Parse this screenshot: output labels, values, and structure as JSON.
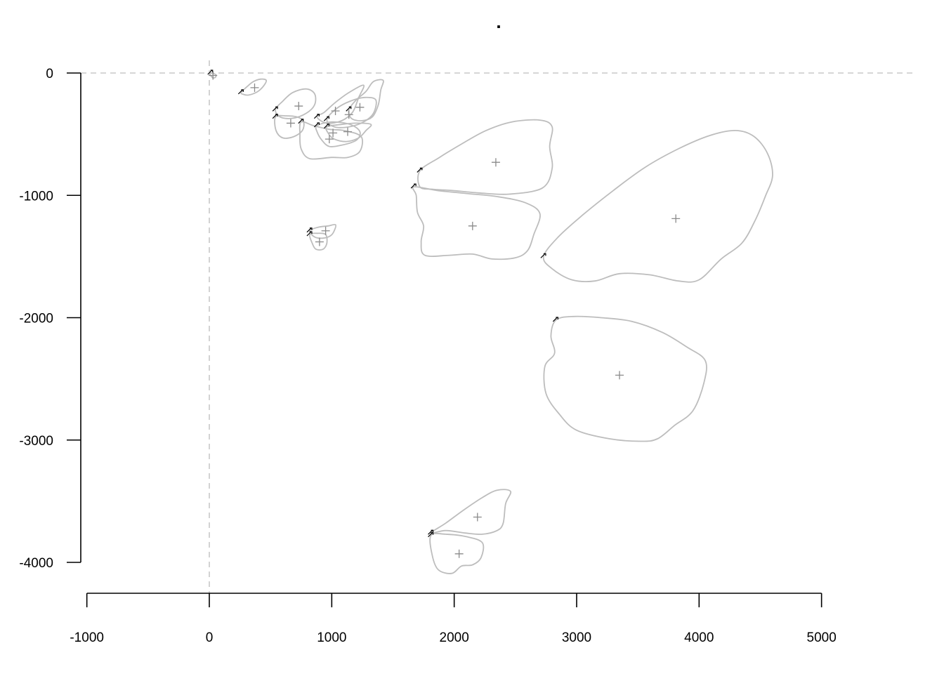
{
  "chart_data": {
    "type": "scatter",
    "title": ".",
    "xlabel": "",
    "ylabel": "",
    "xlim": [
      -1000,
      5000
    ],
    "ylim": [
      -4000,
      0
    ],
    "x_ticks": [
      -1000,
      0,
      1000,
      2000,
      3000,
      4000,
      5000
    ],
    "y_ticks": [
      0,
      -1000,
      -2000,
      -3000,
      -4000
    ],
    "x_tick_labels": [
      "-1000",
      "0",
      "1000",
      "2000",
      "3000",
      "4000",
      "5000"
    ],
    "y_tick_labels": [
      "0",
      "-1000",
      "-2000",
      "-3000",
      "-4000"
    ],
    "reference_lines": {
      "horizontal_at_y": 0,
      "vertical_at_x": 0,
      "style": "dashed"
    },
    "colors": {
      "outline": "#bdbdbd",
      "centroid": "#8a8a8a",
      "start_marker": "#000000",
      "axis": "#000000",
      "reference": "#c8c8c8"
    },
    "shapes": [
      {
        "centroid": [
          30,
          -20
        ],
        "start": [
          10,
          0
        ],
        "outline": [
          [
            10,
            0
          ],
          [
            35,
            -5
          ],
          [
            55,
            -15
          ],
          [
            50,
            -35
          ],
          [
            30,
            -40
          ],
          [
            15,
            -25
          ],
          [
            5,
            -10
          ]
        ]
      },
      {
        "centroid": [
          370,
          -120
        ],
        "start": [
          260,
          -160
        ],
        "outline": [
          [
            260,
            -160
          ],
          [
            310,
            -110
          ],
          [
            360,
            -70
          ],
          [
            420,
            -50
          ],
          [
            465,
            -60
          ],
          [
            440,
            -110
          ],
          [
            390,
            -155
          ],
          [
            320,
            -180
          ],
          [
            280,
            -175
          ]
        ]
      },
      {
        "centroid": [
          730,
          -270
        ],
        "start": [
          540,
          -300
        ],
        "outline": [
          [
            540,
            -300
          ],
          [
            600,
            -230
          ],
          [
            680,
            -160
          ],
          [
            790,
            -130
          ],
          [
            860,
            -170
          ],
          [
            860,
            -260
          ],
          [
            790,
            -330
          ],
          [
            680,
            -370
          ],
          [
            580,
            -360
          ]
        ]
      },
      {
        "centroid": [
          665,
          -410
        ],
        "start": [
          540,
          -360
        ],
        "outline": [
          [
            540,
            -360
          ],
          [
            620,
            -350
          ],
          [
            720,
            -360
          ],
          [
            770,
            -400
          ],
          [
            760,
            -470
          ],
          [
            690,
            -520
          ],
          [
            600,
            -530
          ],
          [
            545,
            -470
          ]
        ]
      },
      {
        "centroid": [
          1030,
          -310
        ],
        "start": [
          880,
          -360
        ],
        "outline": [
          [
            880,
            -360
          ],
          [
            940,
            -320
          ],
          [
            1030,
            -240
          ],
          [
            1140,
            -160
          ],
          [
            1260,
            -100
          ],
          [
            1220,
            -200
          ],
          [
            1170,
            -320
          ],
          [
            1080,
            -390
          ],
          [
            960,
            -410
          ]
        ]
      },
      {
        "centroid": [
          1230,
          -280
        ],
        "start": [
          1140,
          -300
        ],
        "outline": [
          [
            1140,
            -300
          ],
          [
            1200,
            -220
          ],
          [
            1280,
            -150
          ],
          [
            1340,
            -70
          ],
          [
            1420,
            -60
          ],
          [
            1400,
            -140
          ],
          [
            1380,
            -260
          ],
          [
            1330,
            -360
          ],
          [
            1240,
            -390
          ],
          [
            1160,
            -370
          ]
        ]
      },
      {
        "centroid": [
          1140,
          -340
        ],
        "start": [
          960,
          -380
        ],
        "outline": [
          [
            960,
            -380
          ],
          [
            1040,
            -290
          ],
          [
            1150,
            -230
          ],
          [
            1270,
            -200
          ],
          [
            1360,
            -220
          ],
          [
            1340,
            -330
          ],
          [
            1260,
            -400
          ],
          [
            1140,
            -440
          ],
          [
            1020,
            -440
          ]
        ]
      },
      {
        "centroid": [
          1010,
          -490
        ],
        "start": [
          880,
          -430
        ],
        "outline": [
          [
            880,
            -430
          ],
          [
            1000,
            -400
          ],
          [
            1150,
            -420
          ],
          [
            1230,
            -480
          ],
          [
            1200,
            -550
          ],
          [
            1080,
            -590
          ],
          [
            980,
            -600
          ],
          [
            920,
            -550
          ],
          [
            880,
            -480
          ]
        ]
      },
      {
        "centroid": [
          1130,
          -480
        ],
        "start": [
          960,
          -440
        ],
        "outline": [
          [
            960,
            -440
          ],
          [
            1080,
            -420
          ],
          [
            1200,
            -410
          ],
          [
            1320,
            -420
          ],
          [
            1280,
            -470
          ],
          [
            1220,
            -530
          ],
          [
            1120,
            -560
          ],
          [
            1020,
            -540
          ],
          [
            970,
            -490
          ]
        ]
      },
      {
        "centroid": [
          980,
          -540
        ],
        "start": [
          750,
          -400
        ],
        "outline": [
          [
            750,
            -400
          ],
          [
            850,
            -430
          ],
          [
            980,
            -460
          ],
          [
            1100,
            -470
          ],
          [
            1240,
            -520
          ],
          [
            1230,
            -640
          ],
          [
            1130,
            -690
          ],
          [
            1000,
            -690
          ],
          [
            820,
            -700
          ],
          [
            750,
            -620
          ],
          [
            740,
            -500
          ]
        ]
      },
      {
        "centroid": [
          2340,
          -730
        ],
        "start": [
          1720,
          -800
        ],
        "outline": [
          [
            1720,
            -800
          ],
          [
            1880,
            -690
          ],
          [
            2060,
            -580
          ],
          [
            2260,
            -470
          ],
          [
            2470,
            -400
          ],
          [
            2700,
            -385
          ],
          [
            2800,
            -440
          ],
          [
            2780,
            -600
          ],
          [
            2800,
            -780
          ],
          [
            2720,
            -940
          ],
          [
            2450,
            -990
          ],
          [
            2200,
            -980
          ],
          [
            1980,
            -960
          ],
          [
            1820,
            -950
          ],
          [
            1720,
            -930
          ]
        ]
      },
      {
        "centroid": [
          2150,
          -1250
        ],
        "start": [
          1670,
          -930
        ],
        "outline": [
          [
            1670,
            -930
          ],
          [
            1860,
            -960
          ],
          [
            2100,
            -985
          ],
          [
            2350,
            -1010
          ],
          [
            2580,
            -1060
          ],
          [
            2700,
            -1150
          ],
          [
            2650,
            -1320
          ],
          [
            2600,
            -1450
          ],
          [
            2500,
            -1510
          ],
          [
            2310,
            -1520
          ],
          [
            2150,
            -1480
          ],
          [
            1960,
            -1490
          ],
          [
            1760,
            -1490
          ],
          [
            1730,
            -1380
          ],
          [
            1750,
            -1250
          ],
          [
            1700,
            -1140
          ],
          [
            1690,
            -1000
          ]
        ]
      },
      {
        "centroid": [
          3810,
          -1190
        ],
        "start": [
          2730,
          -1500
        ],
        "outline": [
          [
            2730,
            -1500
          ],
          [
            2850,
            -1340
          ],
          [
            3050,
            -1160
          ],
          [
            3300,
            -960
          ],
          [
            3560,
            -770
          ],
          [
            3830,
            -620
          ],
          [
            4090,
            -510
          ],
          [
            4300,
            -470
          ],
          [
            4450,
            -520
          ],
          [
            4560,
            -660
          ],
          [
            4600,
            -840
          ],
          [
            4540,
            -1010
          ],
          [
            4460,
            -1200
          ],
          [
            4350,
            -1390
          ],
          [
            4180,
            -1520
          ],
          [
            4000,
            -1690
          ],
          [
            3830,
            -1700
          ],
          [
            3600,
            -1650
          ],
          [
            3350,
            -1640
          ],
          [
            3150,
            -1700
          ],
          [
            2960,
            -1690
          ],
          [
            2800,
            -1600
          ]
        ]
      },
      {
        "centroid": [
          3350,
          -2470
        ],
        "start": [
          2830,
          -2020
        ],
        "outline": [
          [
            2830,
            -2020
          ],
          [
            2970,
            -1990
          ],
          [
            3200,
            -2000
          ],
          [
            3450,
            -2030
          ],
          [
            3700,
            -2120
          ],
          [
            3900,
            -2240
          ],
          [
            4050,
            -2350
          ],
          [
            4040,
            -2530
          ],
          [
            3950,
            -2760
          ],
          [
            3800,
            -2880
          ],
          [
            3660,
            -2990
          ],
          [
            3520,
            -3010
          ],
          [
            3270,
            -2990
          ],
          [
            3000,
            -2920
          ],
          [
            2860,
            -2790
          ],
          [
            2750,
            -2620
          ],
          [
            2740,
            -2400
          ],
          [
            2820,
            -2290
          ],
          [
            2790,
            -2150
          ]
        ]
      },
      {
        "centroid": [
          950,
          -1290
        ],
        "start": [
          820,
          -1290
        ],
        "outline": [
          [
            820,
            -1290
          ],
          [
            890,
            -1260
          ],
          [
            970,
            -1250
          ],
          [
            1030,
            -1240
          ],
          [
            1020,
            -1290
          ],
          [
            990,
            -1330
          ],
          [
            930,
            -1350
          ],
          [
            860,
            -1340
          ]
        ]
      },
      {
        "centroid": [
          900,
          -1380
        ],
        "start": [
          820,
          -1320
        ],
        "outline": [
          [
            820,
            -1320
          ],
          [
            880,
            -1310
          ],
          [
            950,
            -1320
          ],
          [
            960,
            -1390
          ],
          [
            930,
            -1440
          ],
          [
            870,
            -1440
          ],
          [
            840,
            -1390
          ]
        ]
      },
      {
        "centroid": [
          2190,
          -3630
        ],
        "start": [
          1810,
          -3760
        ],
        "outline": [
          [
            1810,
            -3760
          ],
          [
            1930,
            -3680
          ],
          [
            2080,
            -3570
          ],
          [
            2230,
            -3470
          ],
          [
            2350,
            -3410
          ],
          [
            2460,
            -3420
          ],
          [
            2420,
            -3520
          ],
          [
            2400,
            -3680
          ],
          [
            2350,
            -3740
          ],
          [
            2230,
            -3770
          ],
          [
            2090,
            -3760
          ],
          [
            1930,
            -3740
          ]
        ]
      },
      {
        "centroid": [
          2040,
          -3930
        ],
        "start": [
          1810,
          -3780
        ],
        "outline": [
          [
            1810,
            -3780
          ],
          [
            1930,
            -3770
          ],
          [
            2100,
            -3790
          ],
          [
            2230,
            -3840
          ],
          [
            2220,
            -3960
          ],
          [
            2150,
            -4020
          ],
          [
            2060,
            -4030
          ],
          [
            1980,
            -4090
          ],
          [
            1870,
            -4060
          ],
          [
            1820,
            -3940
          ]
        ]
      }
    ]
  }
}
